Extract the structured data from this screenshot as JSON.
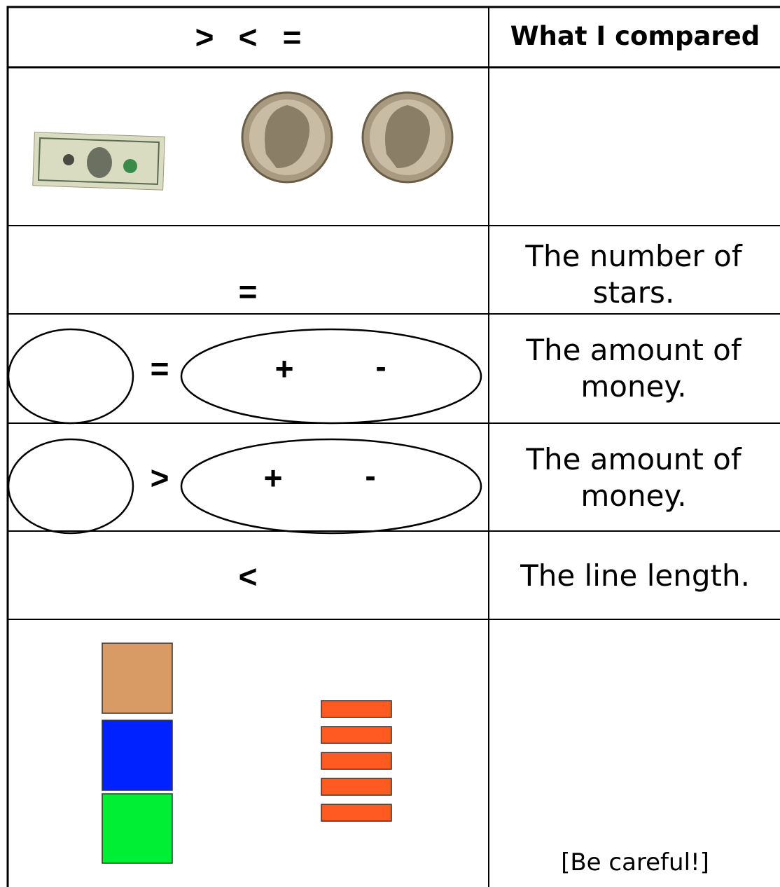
{
  "table": {
    "header": {
      "symbols": [
        ">",
        "<",
        "="
      ],
      "compared": "What I compared"
    },
    "rows": [
      {
        "sign": "=",
        "compared": "The number of stars."
      },
      {
        "sign": "=",
        "plus": "+",
        "minus": "-",
        "compared": "The amount of money."
      },
      {
        "sign": ">",
        "plus": "+",
        "minus": "-",
        "compared": "The amount of money."
      },
      {
        "sign": "<",
        "compared": "The line length."
      }
    ],
    "note": "[Be careful!]"
  }
}
